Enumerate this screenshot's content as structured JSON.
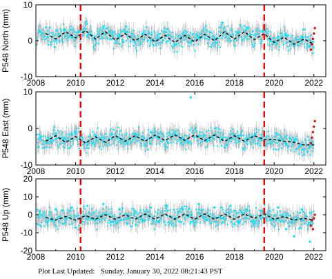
{
  "footer": {
    "label": "Plot Last Updated:",
    "timestamp": "Sunday, January 30, 2022 08:21:43 PST"
  },
  "colors": {
    "data_points": "#00e5ff",
    "error_bars": "#b8b8b8",
    "model": "#000000",
    "offsets": "#ff0000",
    "recent_points": "#dd0000"
  },
  "chart_data": [
    {
      "type": "scatter",
      "component": "north",
      "ylabel": "P548 North (mm)",
      "xlim": [
        2008,
        2022.6
      ],
      "ylim": [
        -10,
        10
      ],
      "xticks": [
        2008,
        2010,
        2012,
        2014,
        2016,
        2018,
        2020,
        2022
      ],
      "yticks": [
        -10,
        0,
        10
      ],
      "offset_lines": [
        2010.25,
        2019.5
      ],
      "series": [
        {
          "style": "dashed-model",
          "x": [
            2008.5,
            2009.0,
            2009.5,
            2010.0,
            2010.5,
            2011.0,
            2011.5,
            2012.0,
            2012.5,
            2013.0,
            2013.5,
            2014.0,
            2014.5,
            2015.0,
            2015.5,
            2016.0,
            2016.5,
            2017.0,
            2017.5,
            2018.0,
            2018.5,
            2019.0,
            2019.5,
            2020.0,
            2020.5,
            2021.0,
            2021.5,
            2022.0
          ],
          "y": [
            2.0,
            0.5,
            2.5,
            0.8,
            2.8,
            0.5,
            2.5,
            0.2,
            2.0,
            0.0,
            1.8,
            -0.3,
            1.5,
            -0.5,
            1.5,
            -0.3,
            1.8,
            0.0,
            2.5,
            0.5,
            2.5,
            0.3,
            2.0,
            -0.5,
            1.0,
            -1.0,
            0.5,
            -1.0
          ]
        },
        {
          "style": "observations",
          "x": [
            2008.2,
            2008.6,
            2009.0,
            2009.4,
            2009.8,
            2010.2,
            2010.6,
            2011.0,
            2011.4,
            2011.8,
            2012.2,
            2012.6,
            2013.0,
            2013.4,
            2013.8,
            2014.2,
            2014.6,
            2015.0,
            2015.4,
            2015.8,
            2016.2,
            2016.6,
            2017.0,
            2017.4,
            2017.8,
            2018.2,
            2018.6,
            2019.0,
            2019.4,
            2019.8,
            2020.2,
            2020.6,
            2021.0,
            2021.4,
            2021.8
          ],
          "y": [
            2.5,
            1.0,
            0.0,
            3.0,
            1.0,
            2.5,
            1.5,
            0.5,
            3.5,
            0.5,
            1.0,
            2.5,
            -0.5,
            2.0,
            0.0,
            0.5,
            1.5,
            -1.0,
            2.0,
            -0.5,
            1.0,
            1.5,
            0.5,
            5.0,
            1.5,
            2.5,
            3.0,
            0.5,
            2.5,
            0.0,
            1.0,
            1.5,
            -1.0,
            1.0,
            -1.5
          ]
        },
        {
          "style": "recent",
          "x": [
            2021.85,
            2021.9,
            2021.95,
            2022.0,
            2022.05
          ],
          "y": [
            -2.5,
            -1.0,
            0.5,
            2.0,
            3.5
          ]
        }
      ]
    },
    {
      "type": "scatter",
      "component": "east",
      "ylabel": "P548 East (mm)",
      "xlim": [
        2008,
        2022.6
      ],
      "ylim": [
        -10,
        10
      ],
      "xticks": [
        2008,
        2010,
        2012,
        2014,
        2016,
        2018,
        2020,
        2022
      ],
      "yticks": [
        -10,
        0,
        10
      ],
      "offset_lines": [
        2010.25,
        2019.5
      ],
      "series": [
        {
          "style": "dashed-model",
          "x": [
            2008.5,
            2009.0,
            2009.5,
            2010.0,
            2010.5,
            2011.0,
            2011.5,
            2012.0,
            2012.5,
            2013.0,
            2013.5,
            2014.0,
            2014.5,
            2015.0,
            2015.5,
            2016.0,
            2016.5,
            2017.0,
            2017.5,
            2018.0,
            2018.5,
            2019.0,
            2019.5,
            2020.0,
            2020.5,
            2021.0,
            2021.5,
            2022.0
          ],
          "y": [
            -3.5,
            -2.0,
            -3.8,
            -2.2,
            -4.0,
            -2.3,
            -3.8,
            -2.0,
            -3.5,
            -2.0,
            -3.5,
            -1.8,
            -3.3,
            -1.8,
            -3.2,
            -1.8,
            -3.3,
            -1.8,
            -3.5,
            -2.0,
            -3.5,
            -2.0,
            -3.0,
            -3.0,
            -3.5,
            -3.8,
            -4.5,
            -4.5
          ]
        },
        {
          "style": "observations",
          "x": [
            2008.2,
            2008.6,
            2009.0,
            2009.4,
            2009.8,
            2010.2,
            2010.6,
            2011.0,
            2011.4,
            2011.8,
            2012.2,
            2012.6,
            2013.0,
            2013.4,
            2013.8,
            2014.2,
            2014.6,
            2015.0,
            2015.4,
            2015.8,
            2016.2,
            2016.6,
            2017.0,
            2017.4,
            2017.8,
            2018.2,
            2018.6,
            2019.0,
            2019.4,
            2019.8,
            2020.2,
            2020.6,
            2021.0,
            2021.4,
            2021.8
          ],
          "y": [
            -2.5,
            -4.0,
            -1.5,
            -3.0,
            -1.5,
            -2.5,
            -4.5,
            -2.0,
            -3.5,
            -1.5,
            -2.5,
            -4.0,
            -1.5,
            -3.0,
            -1.0,
            -2.5,
            -3.5,
            -1.5,
            -3.0,
            8.5,
            -2.0,
            -3.5,
            -1.5,
            -3.0,
            -2.5,
            -2.0,
            -3.5,
            -2.0,
            -2.5,
            -3.0,
            -3.0,
            -4.0,
            -3.5,
            -4.5,
            -5.0
          ]
        },
        {
          "style": "recent",
          "x": [
            2021.85,
            2021.9,
            2021.95,
            2022.0,
            2022.05
          ],
          "y": [
            -4.0,
            -2.5,
            -1.0,
            0.5,
            2.0
          ]
        }
      ]
    },
    {
      "type": "scatter",
      "component": "up",
      "ylabel": "P548 Up (mm)",
      "xlim": [
        2008,
        2022.6
      ],
      "ylim": [
        -20,
        20
      ],
      "xticks": [
        2008,
        2010,
        2012,
        2014,
        2016,
        2018,
        2020,
        2022
      ],
      "yticks": [
        -20,
        -10,
        0,
        10,
        20
      ],
      "offset_lines": [
        2010.25,
        2019.5
      ],
      "series": [
        {
          "style": "dashed-model",
          "x": [
            2008.5,
            2009.0,
            2009.5,
            2010.0,
            2010.5,
            2011.0,
            2011.5,
            2012.0,
            2012.5,
            2013.0,
            2013.5,
            2014.0,
            2014.5,
            2015.0,
            2015.5,
            2016.0,
            2016.5,
            2017.0,
            2017.5,
            2018.0,
            2018.5,
            2019.0,
            2019.5,
            2020.0,
            2020.5,
            2021.0,
            2021.5,
            2022.0
          ],
          "y": [
            -1.5,
            -3.0,
            -1.0,
            -3.0,
            -0.5,
            -2.5,
            0.0,
            -2.5,
            0.0,
            -2.5,
            0.5,
            -2.5,
            0.5,
            -2.5,
            0.5,
            -2.5,
            0.5,
            -2.5,
            0.5,
            -2.5,
            0.5,
            -2.0,
            0.5,
            -2.5,
            -1.0,
            -3.0,
            -2.0,
            -3.0
          ]
        },
        {
          "style": "observations",
          "x": [
            2008.2,
            2008.6,
            2009.0,
            2009.4,
            2009.8,
            2010.2,
            2010.6,
            2011.0,
            2011.4,
            2011.8,
            2012.2,
            2012.6,
            2013.0,
            2013.4,
            2013.8,
            2014.2,
            2014.6,
            2015.0,
            2015.4,
            2015.8,
            2016.2,
            2016.6,
            2017.0,
            2017.4,
            2017.8,
            2018.2,
            2018.6,
            2019.0,
            2019.4,
            2019.8,
            2020.2,
            2020.6,
            2021.0,
            2021.4,
            2021.8
          ],
          "y": [
            2.0,
            -4.0,
            3.0,
            -5.0,
            4.0,
            -2.0,
            5.0,
            -3.0,
            6.0,
            -4.0,
            3.0,
            -5.0,
            2.0,
            -3.0,
            4.0,
            -4.0,
            5.0,
            -2.0,
            3.0,
            -4.0,
            6.0,
            -3.0,
            4.0,
            -2.0,
            5.0,
            -4.0,
            3.0,
            -5.0,
            2.0,
            -3.0,
            4.0,
            -8.0,
            -12.0,
            3.0,
            -15.0
          ]
        },
        {
          "style": "recent",
          "x": [
            2021.85,
            2021.9,
            2021.95,
            2022.0,
            2022.05
          ],
          "y": [
            -6.0,
            -3.0,
            -8.0,
            -2.0,
            0.0
          ]
        }
      ]
    }
  ]
}
